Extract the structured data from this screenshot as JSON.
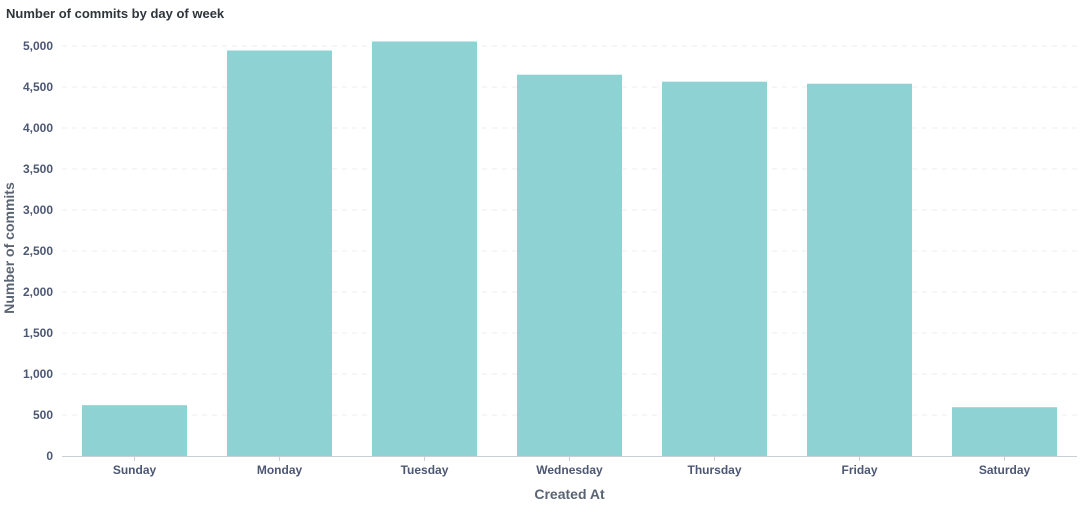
{
  "chart_data": {
    "type": "bar",
    "title": "Number of commits by day of week",
    "xlabel": "Created At",
    "ylabel": "Number of commits",
    "categories": [
      "Sunday",
      "Monday",
      "Tuesday",
      "Wednesday",
      "Thursday",
      "Friday",
      "Saturday"
    ],
    "values": [
      620,
      4945,
      5055,
      4650,
      4565,
      4540,
      595
    ],
    "ylim": [
      0,
      5000
    ],
    "yticks": [
      0,
      500,
      1000,
      1500,
      2000,
      2500,
      3000,
      3500,
      4000,
      4500,
      5000
    ],
    "ytick_labels": [
      "0",
      "500",
      "1,000",
      "1,500",
      "2,000",
      "2,500",
      "3,000",
      "3,500",
      "4,000",
      "4,500",
      "5,000"
    ],
    "grid": true,
    "bar_color": "#8ed2d3"
  }
}
